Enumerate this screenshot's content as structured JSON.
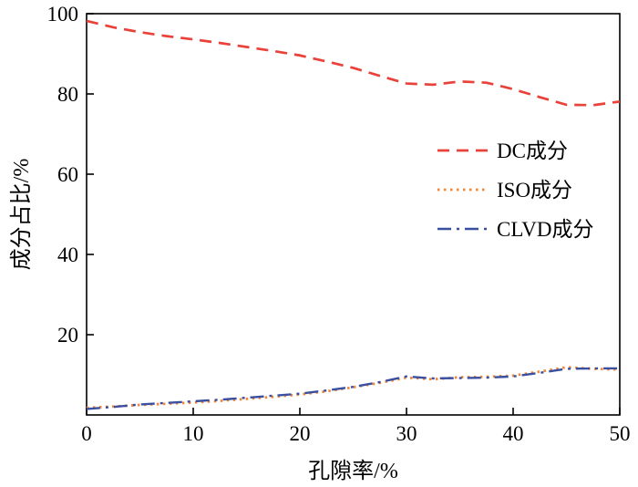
{
  "chart_data": {
    "type": "line",
    "title": "",
    "xlabel": "孔隙率/%",
    "ylabel": "成分占比/%",
    "xlim": [
      0,
      50
    ],
    "ylim": [
      0,
      100
    ],
    "xticks": [
      0,
      10,
      20,
      30,
      40,
      50
    ],
    "yticks": [
      20,
      40,
      60,
      80,
      100
    ],
    "grid": false,
    "legend_position": "center-right",
    "x": [
      0,
      2.5,
      5,
      7.5,
      10,
      12.5,
      15,
      17.5,
      20,
      22.5,
      25,
      27.5,
      30,
      32.5,
      35,
      37.5,
      40,
      42.5,
      45,
      47.5,
      50
    ],
    "series": [
      {
        "key": "dc",
        "name": "DC成分",
        "color": "#e8423a",
        "dash": "dashed",
        "width": 2.7,
        "values": [
          98.2,
          96.6,
          95.4,
          94.4,
          93.6,
          92.7,
          91.7,
          90.7,
          89.6,
          88.1,
          86.5,
          84.5,
          82.6,
          82.3,
          83.1,
          82.8,
          81.2,
          79.2,
          77.3,
          77.2,
          78.1
        ]
      },
      {
        "key": "iso",
        "name": "ISO成分",
        "color": "#f0883a",
        "dash": "dotted",
        "width": 2.8,
        "values": [
          1.8,
          2.1,
          2.5,
          2.8,
          3.1,
          3.5,
          4.0,
          4.5,
          5.1,
          5.9,
          6.9,
          8.0,
          9.3,
          8.9,
          9.4,
          9.5,
          9.8,
          10.8,
          11.9,
          11.5,
          11.3
        ]
      },
      {
        "key": "clvd",
        "name": "CLVD成分",
        "color": "#3b4fa0",
        "dash": "dashdot",
        "width": 2.4,
        "values": [
          1.5,
          2.0,
          2.6,
          3.0,
          3.4,
          3.8,
          4.3,
          4.8,
          5.3,
          6.1,
          7.0,
          8.2,
          9.6,
          9.1,
          9.2,
          9.3,
          9.6,
          10.5,
          11.5,
          11.6,
          11.6
        ]
      }
    ]
  }
}
